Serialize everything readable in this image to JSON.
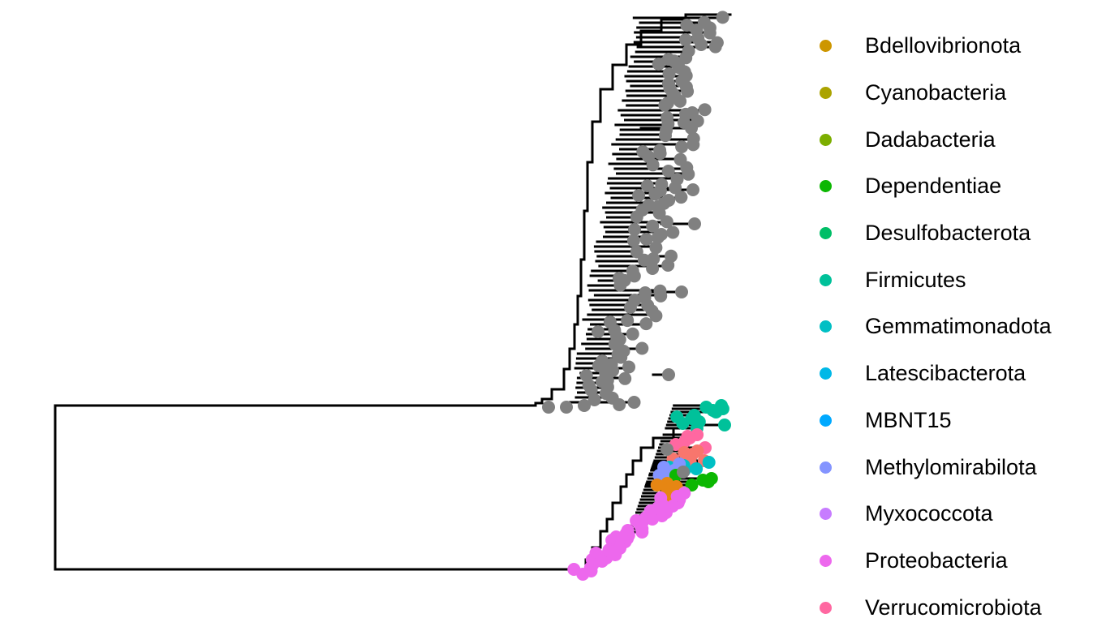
{
  "legend": {
    "items": [
      {
        "label": "Bdellovibrionota",
        "color": "#CD9600"
      },
      {
        "label": "Cyanobacteria",
        "color": "#ABA300"
      },
      {
        "label": "Dadabacteria",
        "color": "#7CAE00"
      },
      {
        "label": "Dependentiae",
        "color": "#0CB702"
      },
      {
        "label": "Desulfobacterota",
        "color": "#00BE67"
      },
      {
        "label": "Firmicutes",
        "color": "#00C19A"
      },
      {
        "label": "Gemmatimonadota",
        "color": "#00BFC4"
      },
      {
        "label": "Latescibacterota",
        "color": "#00B8E7"
      },
      {
        "label": "MBNT15",
        "color": "#00A9FF"
      },
      {
        "label": "Methylomirabilota",
        "color": "#8494FF"
      },
      {
        "label": "Myxococcota",
        "color": "#C77CFF"
      },
      {
        "label": "Proteobacteria",
        "color": "#ED68ED"
      },
      {
        "label": "Verrucomicrobiota",
        "color": "#FF68A1"
      }
    ]
  },
  "colors": {
    "branch": "#000000",
    "unassigned_tip": "#808080",
    "salmon_tip": "#F8766D",
    "orange_tip": "#E68613"
  }
}
